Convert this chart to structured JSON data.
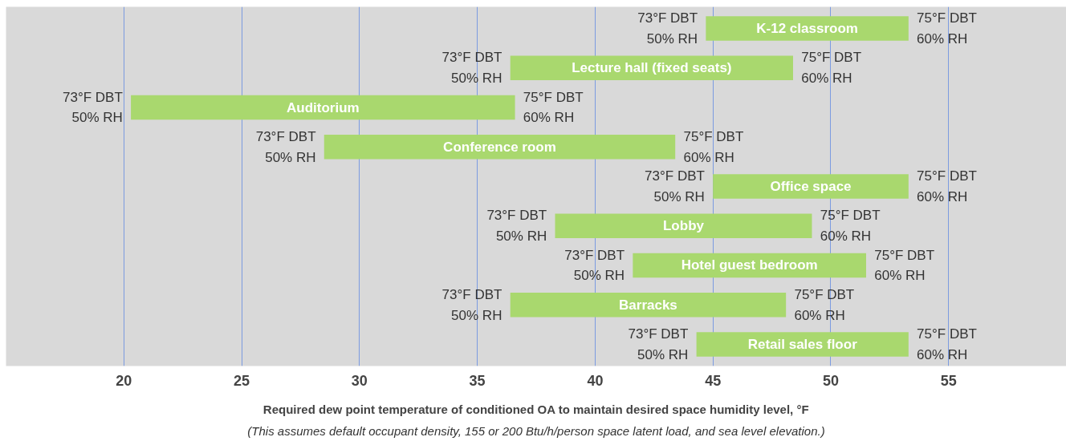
{
  "chart_data": {
    "type": "bar",
    "orientation": "horizontal",
    "xlabel": "Required dew point temperature of conditioned OA to maintain desired space humidity level, °F",
    "categories": [
      "K-12 classroom",
      "Lecture hall (fixed seats)",
      "Auditorium",
      "Conference room",
      "Office space",
      "Lobby",
      "Hotel guest bedroom",
      "Barracks",
      "Retail sales floor"
    ],
    "base": [
      44.7,
      36.4,
      20.3,
      28.5,
      45.0,
      38.3,
      41.6,
      36.4,
      44.3
    ],
    "values": [
      8.6,
      12.0,
      16.3,
      14.9,
      8.3,
      10.9,
      9.9,
      11.7,
      9.0
    ],
    "color": "#a9d86e",
    "xlim": [
      15,
      60
    ],
    "xticks": [
      20,
      25,
      30,
      35,
      40,
      45,
      50,
      55
    ],
    "grid": "x",
    "annotations": [
      {
        "text": "73°F DBT\n50% RH",
        "x": 44.7,
        "y": "K-12 classroom"
      },
      {
        "text": "75°F DBT\n60% RH",
        "x": 53.3,
        "y": "K-12 classroom"
      },
      {
        "text": "73°F DBT\n50% RH",
        "x": 36.4,
        "y": "Lecture hall (fixed seats)"
      },
      {
        "text": "75°F DBT\n60% RH",
        "x": 48.4,
        "y": "Lecture hall (fixed seats)"
      },
      {
        "text": "73°F DBT\n50% RH",
        "x": 20.3,
        "y": "Auditorium"
      },
      {
        "text": "75°F DBT\n60% RH",
        "x": 36.6,
        "y": "Auditorium"
      },
      {
        "text": "73°F DBT\n50% RH",
        "x": 28.5,
        "y": "Conference room"
      },
      {
        "text": "75°F DBT\n60% RH",
        "x": 43.4,
        "y": "Conference room"
      },
      {
        "text": "73°F DBT\n50% RH",
        "x": 45.0,
        "y": "Office space"
      },
      {
        "text": "75°F DBT\n60% RH",
        "x": 53.3,
        "y": "Office space"
      },
      {
        "text": "73°F DBT\n50% RH",
        "x": 38.3,
        "y": "Lobby"
      },
      {
        "text": "75°F DBT\n60% RH",
        "x": 49.2,
        "y": "Lobby"
      },
      {
        "text": "73°F DBT\n50% RH",
        "x": 41.6,
        "y": "Hotel guest bedroom"
      },
      {
        "text": "75°F DBT\n60% RH",
        "x": 51.5,
        "y": "Hotel guest bedroom"
      },
      {
        "text": "73°F DBT\n50% RH",
        "x": 36.4,
        "y": "Barracks"
      },
      {
        "text": "75°F DBT\n60% RH",
        "x": 48.1,
        "y": "Barracks"
      },
      {
        "text": "73°F DBT\n50% RH",
        "x": 44.3,
        "y": "Retail sales floor"
      },
      {
        "text": "75°F DBT\n60% RH",
        "x": 53.3,
        "y": "Retail sales floor"
      },
      "(This assumes default occupant density, 155 or 200 Btu/h/person space latent load, and sea level elevation.)"
    ]
  }
}
